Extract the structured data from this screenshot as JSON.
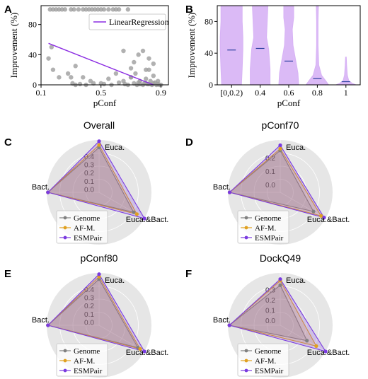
{
  "panels": {
    "A": {
      "label": "A"
    },
    "B": {
      "label": "B"
    },
    "C": {
      "label": "C"
    },
    "D": {
      "label": "D"
    },
    "E": {
      "label": "E"
    },
    "F": {
      "label": "F"
    }
  },
  "colors": {
    "scatter": "#9e9e9e",
    "regression": "#8a2be2",
    "violin": "#d7b2f5",
    "median": "#2b3fa0",
    "genome": "#808080",
    "afm": "#e0a020",
    "esmpair": "#7a3be0",
    "radar_bg": "#e6e6e6"
  },
  "chart_data": [
    {
      "type": "scatter",
      "panel": "A",
      "xlabel": "pConf",
      "ylabel": "Improvement (%)",
      "xlim": [
        0.1,
        0.95
      ],
      "ylim": [
        0,
        105
      ],
      "xticks": [
        "0.1",
        "0.5",
        "0.9"
      ],
      "yticks": [
        "0",
        "40",
        "80"
      ],
      "legend": {
        "label": "LinearRegression",
        "position": "top-right"
      },
      "regression": {
        "x": [
          0.15,
          0.85
        ],
        "y": [
          55,
          0
        ]
      },
      "points": {
        "x": [
          0.16,
          0.18,
          0.2,
          0.22,
          0.24,
          0.26,
          0.3,
          0.32,
          0.35,
          0.38,
          0.4,
          0.42,
          0.44,
          0.46,
          0.48,
          0.5,
          0.52,
          0.55,
          0.58,
          0.6,
          0.62,
          0.65,
          0.68,
          0.7,
          0.72,
          0.75,
          0.78,
          0.8,
          0.82,
          0.85,
          0.88,
          0.18,
          0.22,
          0.28,
          0.33,
          0.38,
          0.43,
          0.5,
          0.55,
          0.6,
          0.65,
          0.7,
          0.75,
          0.8,
          0.85,
          0.15,
          0.17,
          0.3,
          0.31,
          0.33,
          0.36,
          0.4,
          0.45,
          0.52,
          0.57,
          0.62,
          0.66,
          0.68,
          0.72,
          0.74,
          0.76,
          0.78,
          0.8,
          0.82,
          0.84,
          0.86,
          0.87,
          0.88,
          0.89,
          0.9,
          0.7,
          0.73,
          0.76,
          0.79,
          0.82,
          0.85,
          0.83,
          0.81
        ],
        "y": [
          100,
          100,
          100,
          100,
          100,
          100,
          100,
          100,
          100,
          100,
          100,
          100,
          100,
          100,
          100,
          100,
          100,
          100,
          100,
          100,
          100,
          45,
          100,
          22,
          30,
          40,
          45,
          20,
          35,
          12,
          5,
          20,
          10,
          15,
          25,
          10,
          5,
          2,
          8,
          15,
          5,
          10,
          3,
          8,
          2,
          35,
          50,
          10,
          2,
          0,
          1,
          0,
          2,
          1,
          0,
          3,
          1,
          0,
          2,
          0,
          1,
          0,
          2,
          1,
          0,
          3,
          0,
          1,
          0,
          0,
          10,
          15,
          5,
          2,
          20,
          28,
          5,
          1
        ]
      }
    },
    {
      "type": "violin",
      "panel": "B",
      "xlabel": "pConf",
      "ylabel": "Improvement (%)",
      "ylim": [
        0,
        100
      ],
      "categories": [
        "[0,0.2)",
        "0.4",
        "0.6",
        "0.8",
        "1"
      ],
      "yticks": [
        "0",
        "40",
        "80"
      ],
      "medians": [
        44,
        46,
        30,
        8,
        4
      ],
      "max": [
        100,
        100,
        100,
        100,
        35
      ]
    },
    {
      "type": "radar",
      "panel": "C",
      "title": "Overall",
      "axes": [
        "Euca.",
        "Euca.&Bact.",
        "Bact."
      ],
      "ticks": [
        "0.4",
        "0.3",
        "0.2",
        "0.1",
        "0.0"
      ],
      "rmax": 0.42,
      "series": [
        {
          "name": "Genome",
          "values": [
            0.36,
            0.32,
            0.41
          ]
        },
        {
          "name": "AF-M.",
          "values": [
            0.38,
            0.35,
            0.41
          ]
        },
        {
          "name": "ESMPair",
          "values": [
            0.41,
            0.42,
            0.41
          ]
        }
      ]
    },
    {
      "type": "radar",
      "panel": "D",
      "title": "pConf70",
      "axes": [
        "Euca.",
        "Euca.&Bact.",
        "Bact."
      ],
      "ticks": [
        "0.2",
        "0.1",
        "0.0"
      ],
      "rmax": 0.3,
      "series": [
        {
          "name": "Genome",
          "values": [
            0.24,
            0.22,
            0.29
          ]
        },
        {
          "name": "AF-M.",
          "values": [
            0.25,
            0.27,
            0.29
          ]
        },
        {
          "name": "ESMPair",
          "values": [
            0.27,
            0.29,
            0.29
          ]
        }
      ]
    },
    {
      "type": "radar",
      "panel": "E",
      "title": "pConf80",
      "axes": [
        "Euca.",
        "Euca.&Bact.",
        "Bact."
      ],
      "ticks": [
        "0.4",
        "0.3",
        "0.2",
        "0.1",
        "0.0"
      ],
      "rmax": 0.42,
      "series": [
        {
          "name": "Genome",
          "values": [
            0.37,
            0.36,
            0.41
          ]
        },
        {
          "name": "AF-M.",
          "values": [
            0.39,
            0.38,
            0.41
          ]
        },
        {
          "name": "ESMPair",
          "values": [
            0.41,
            0.42,
            0.41
          ]
        }
      ]
    },
    {
      "type": "radar",
      "panel": "F",
      "title": "DockQ49",
      "axes": [
        "Euca.",
        "Euca.&Bact.",
        "Bact."
      ],
      "ticks": [
        "0.3",
        "0.2",
        "0.1",
        "0.0"
      ],
      "rmax": 0.34,
      "series": [
        {
          "name": "Genome",
          "values": [
            0.26,
            0.2,
            0.33
          ]
        },
        {
          "name": "AF-M.",
          "values": [
            0.29,
            0.27,
            0.33
          ]
        },
        {
          "name": "ESMPair",
          "values": [
            0.3,
            0.34,
            0.33
          ]
        }
      ]
    }
  ]
}
